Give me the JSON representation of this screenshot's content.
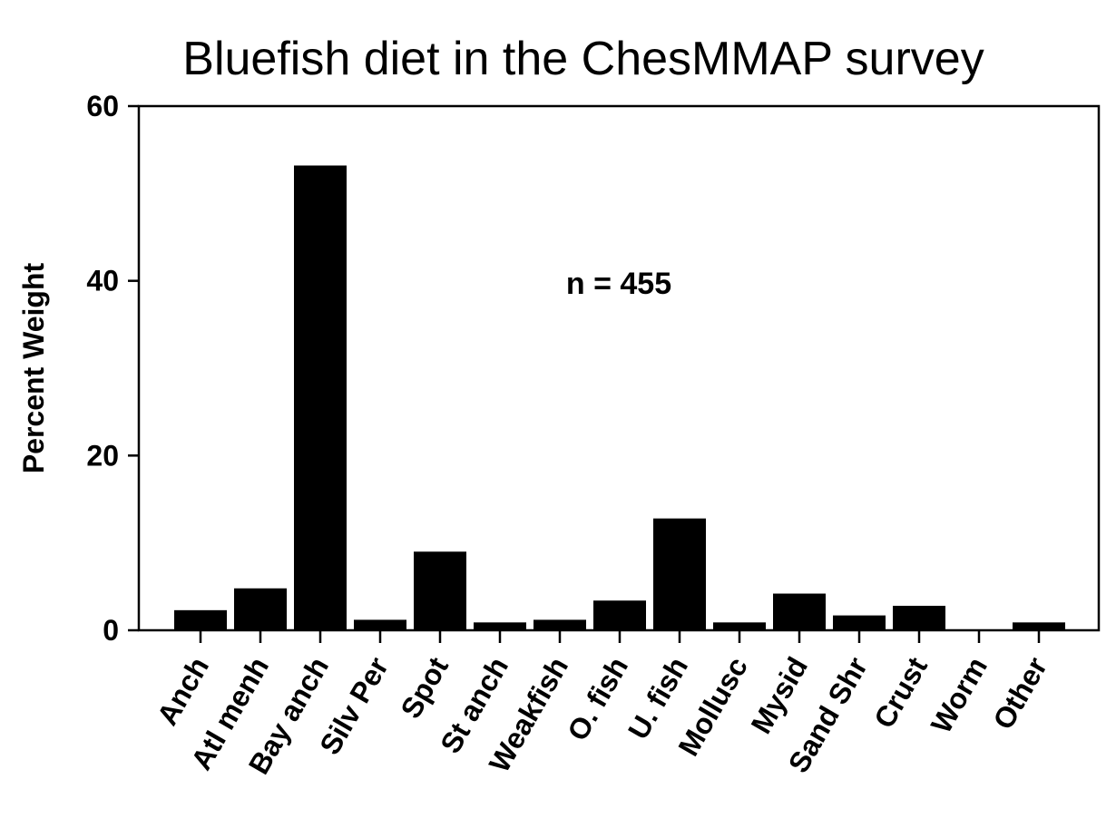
{
  "chart_data": {
    "type": "bar",
    "title": "Bluefish diet in the ChesMMAP survey",
    "xlabel": "",
    "ylabel": "Percent Weight",
    "ylim": [
      0,
      60
    ],
    "yticks": [
      0,
      20,
      40,
      60
    ],
    "grid": false,
    "annotation": "n = 455",
    "categories": [
      "Anch",
      "Atl menh",
      "Bay anch",
      "Silv Per",
      "Spot",
      "St anch",
      "Weakfish",
      "O. fish",
      "U. fish",
      "Mollusc",
      "Mysid",
      "Sand Shr",
      "Crust",
      "Worm",
      "Other"
    ],
    "values": [
      2.3,
      4.8,
      53.2,
      1.2,
      9.0,
      0.9,
      1.2,
      3.4,
      12.8,
      0.9,
      4.2,
      1.7,
      2.8,
      0.0,
      0.9
    ],
    "bar_color": "#000000"
  }
}
